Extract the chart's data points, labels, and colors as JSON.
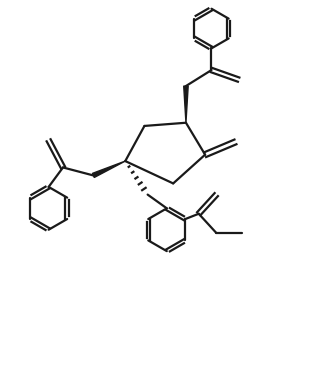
{
  "bg_color": "#ffffff",
  "line_color": "#1a1a1a",
  "line_width": 1.6,
  "figsize": [
    3.24,
    3.86
  ],
  "dpi": 100,
  "xlim": [
    0,
    10
  ],
  "ylim": [
    0,
    12
  ]
}
